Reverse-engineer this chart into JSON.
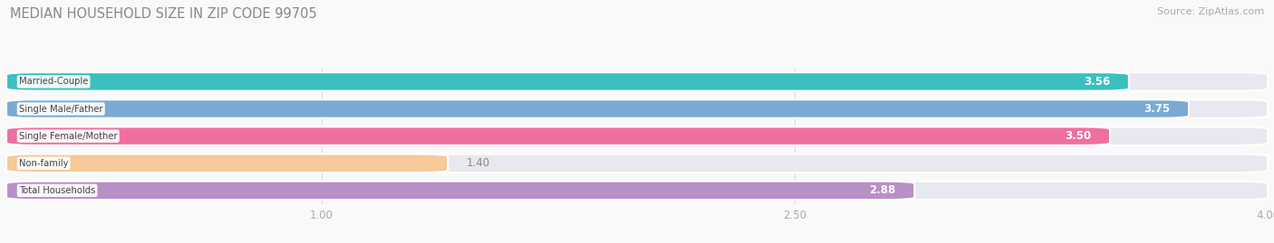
{
  "title": "MEDIAN HOUSEHOLD SIZE IN ZIP CODE 99705",
  "source": "Source: ZipAtlas.com",
  "categories": [
    "Married-Couple",
    "Single Male/Father",
    "Single Female/Mother",
    "Non-family",
    "Total Households"
  ],
  "values": [
    3.56,
    3.75,
    3.5,
    1.4,
    2.88
  ],
  "bar_colors": [
    "#3bbfbf",
    "#7aaad4",
    "#f06fa0",
    "#f5c998",
    "#b98fc8"
  ],
  "label_colors": [
    "#ffffff",
    "#ffffff",
    "#ffffff",
    "#777777",
    "#ffffff"
  ],
  "value_inside": [
    true,
    true,
    true,
    false,
    true
  ],
  "xlim": [
    0,
    4.0
  ],
  "xmin": 0.0,
  "xticks": [
    1.0,
    2.5,
    4.0
  ],
  "background_color": "#f9f9f9",
  "bar_background": "#e8e8f0",
  "bar_border_color": "#ffffff",
  "title_fontsize": 10.5,
  "source_fontsize": 8,
  "bar_height": 0.68,
  "bar_gap": 0.09,
  "figsize": [
    14.06,
    2.69
  ],
  "dpi": 100
}
